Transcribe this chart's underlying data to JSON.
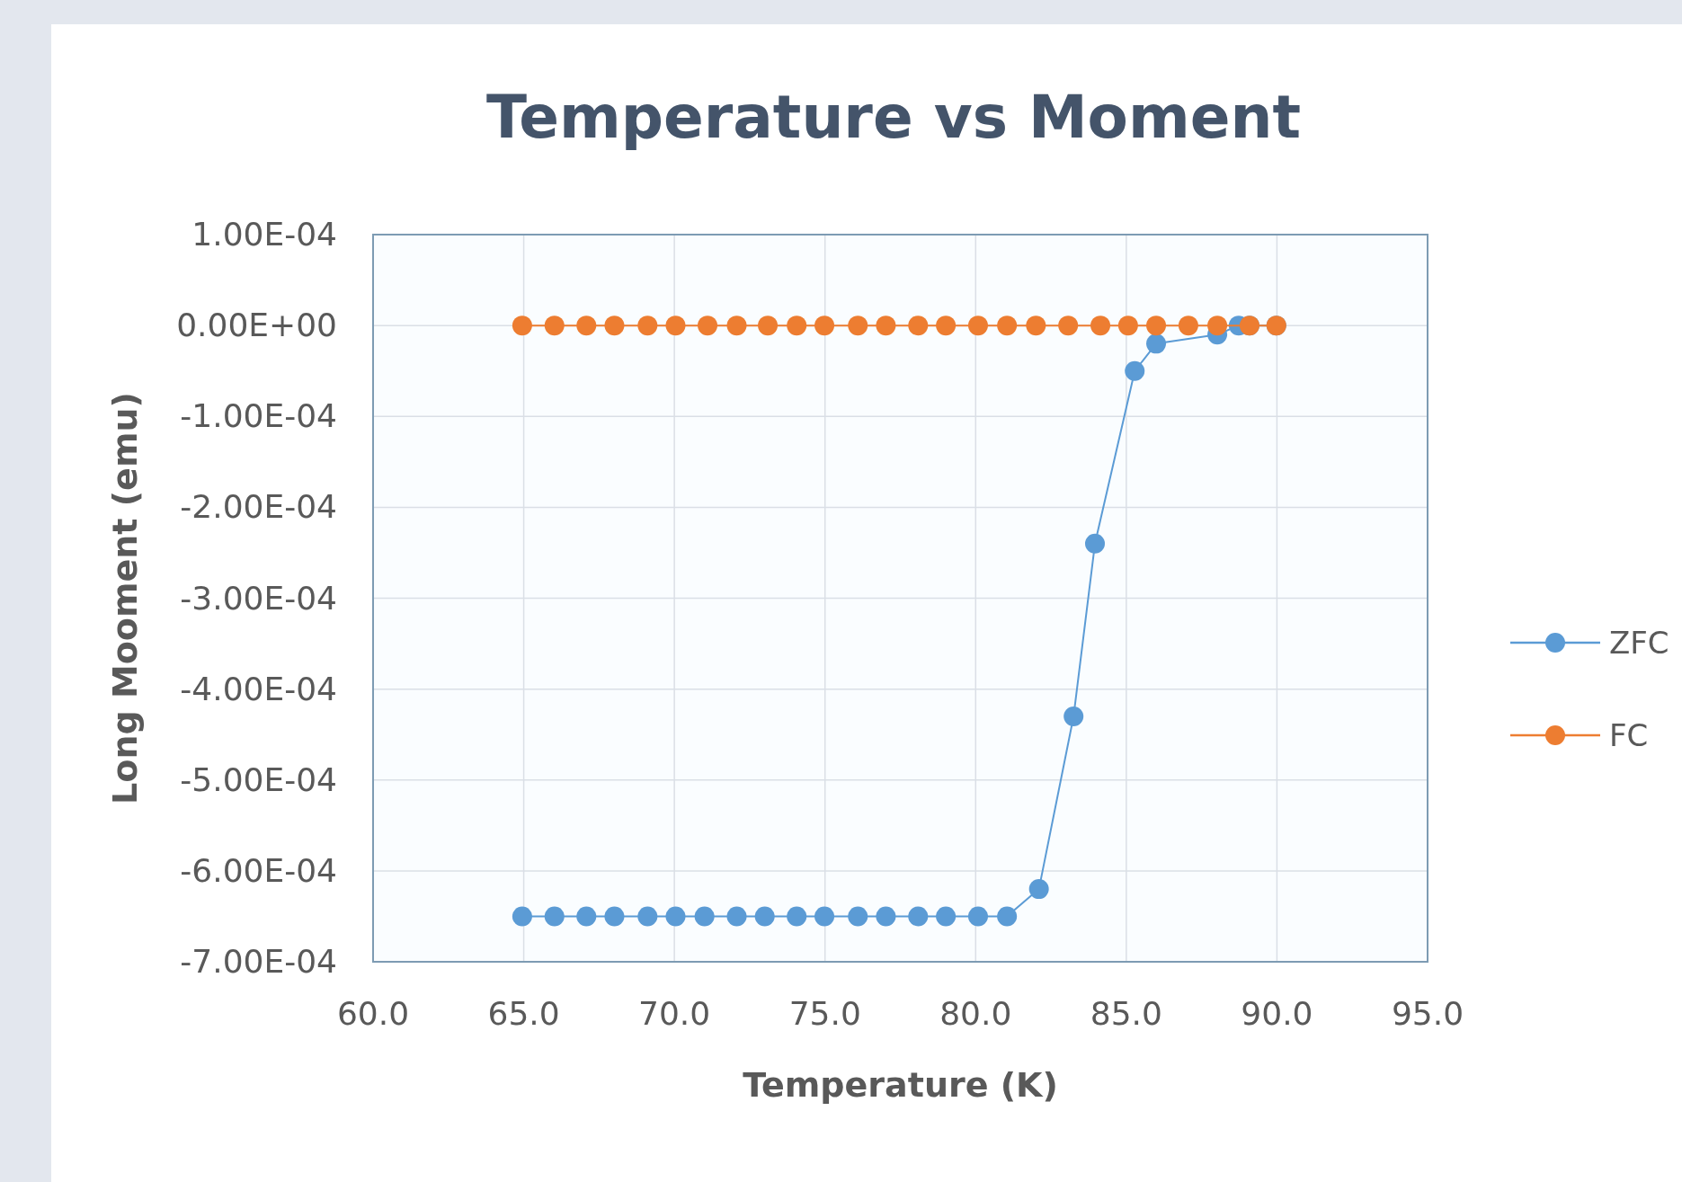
{
  "chart_data": {
    "type": "line",
    "title": "Temperature vs Moment",
    "xlabel": "Temperature (K)",
    "ylabel": "Long Mooment  (emu)",
    "xlim": [
      60,
      95
    ],
    "xticks": [
      {
        "value": 60,
        "label": "60.0"
      },
      {
        "value": 65,
        "label": "65.0"
      },
      {
        "value": 70,
        "label": "70.0"
      },
      {
        "value": 75,
        "label": "75.0"
      },
      {
        "value": 80,
        "label": "80.0"
      },
      {
        "value": 85,
        "label": "85.0"
      },
      {
        "value": 90,
        "label": "90.0"
      },
      {
        "value": 95,
        "label": "95.0"
      }
    ],
    "ylim": [
      -0.0007,
      0.0001
    ],
    "yticks": [
      {
        "value": 0.0001,
        "label": "1.00E-04"
      },
      {
        "value": 0,
        "label": "0.00E+00"
      },
      {
        "value": -0.0001,
        "label": "-1.00E-04"
      },
      {
        "value": -0.0002,
        "label": "-2.00E-04"
      },
      {
        "value": -0.0003,
        "label": "-3.00E-04"
      },
      {
        "value": -0.0004,
        "label": "-4.00E-04"
      },
      {
        "value": -0.0005,
        "label": "-5.00E-04"
      },
      {
        "value": -0.0006,
        "label": "-6.00E-04"
      },
      {
        "value": -0.0007,
        "label": "-7.00E-04"
      }
    ],
    "grid": true,
    "legend": "right",
    "marker": "circle",
    "line_style": "solid",
    "series": [
      {
        "name": "ZFC",
        "color": "#5b9bd5",
        "x": [
          64.95,
          66.02,
          67.08,
          68.01,
          69.11,
          70.04,
          71.0,
          72.07,
          73.0,
          74.06,
          74.98,
          76.09,
          77.02,
          78.09,
          79.01,
          80.08,
          81.04,
          82.1,
          83.25,
          83.96,
          85.28,
          85.99,
          87.06,
          88.02,
          88.73,
          89.09,
          89.98
        ],
        "values": [
          -0.00065,
          -0.00065,
          -0.00065,
          -0.00065,
          -0.00065,
          -0.00065,
          -0.00065,
          -0.00065,
          -0.00065,
          -0.00065,
          -0.00065,
          -0.00065,
          -0.00065,
          -0.00065,
          -0.00065,
          -0.00065,
          -0.00065,
          -0.00062,
          -0.00043,
          -0.00024,
          -5e-05,
          -2e-05,
          null,
          -1e-05,
          0,
          0,
          0
        ]
      },
      {
        "name": "FC",
        "color": "#ed7d31",
        "x": [
          64.95,
          66.02,
          67.08,
          68.01,
          69.11,
          70.04,
          71.1,
          72.07,
          73.1,
          74.06,
          74.98,
          76.09,
          77.02,
          78.09,
          79.01,
          80.08,
          81.04,
          82.0,
          83.07,
          84.14,
          85.06,
          85.99,
          87.06,
          88.02,
          89.09,
          89.98
        ],
        "values": [
          0,
          0,
          0,
          0,
          0,
          0,
          0,
          0,
          0,
          0,
          0,
          0,
          0,
          0,
          0,
          0,
          0,
          0,
          0,
          0,
          0,
          0,
          0,
          0,
          0,
          0
        ]
      }
    ]
  }
}
